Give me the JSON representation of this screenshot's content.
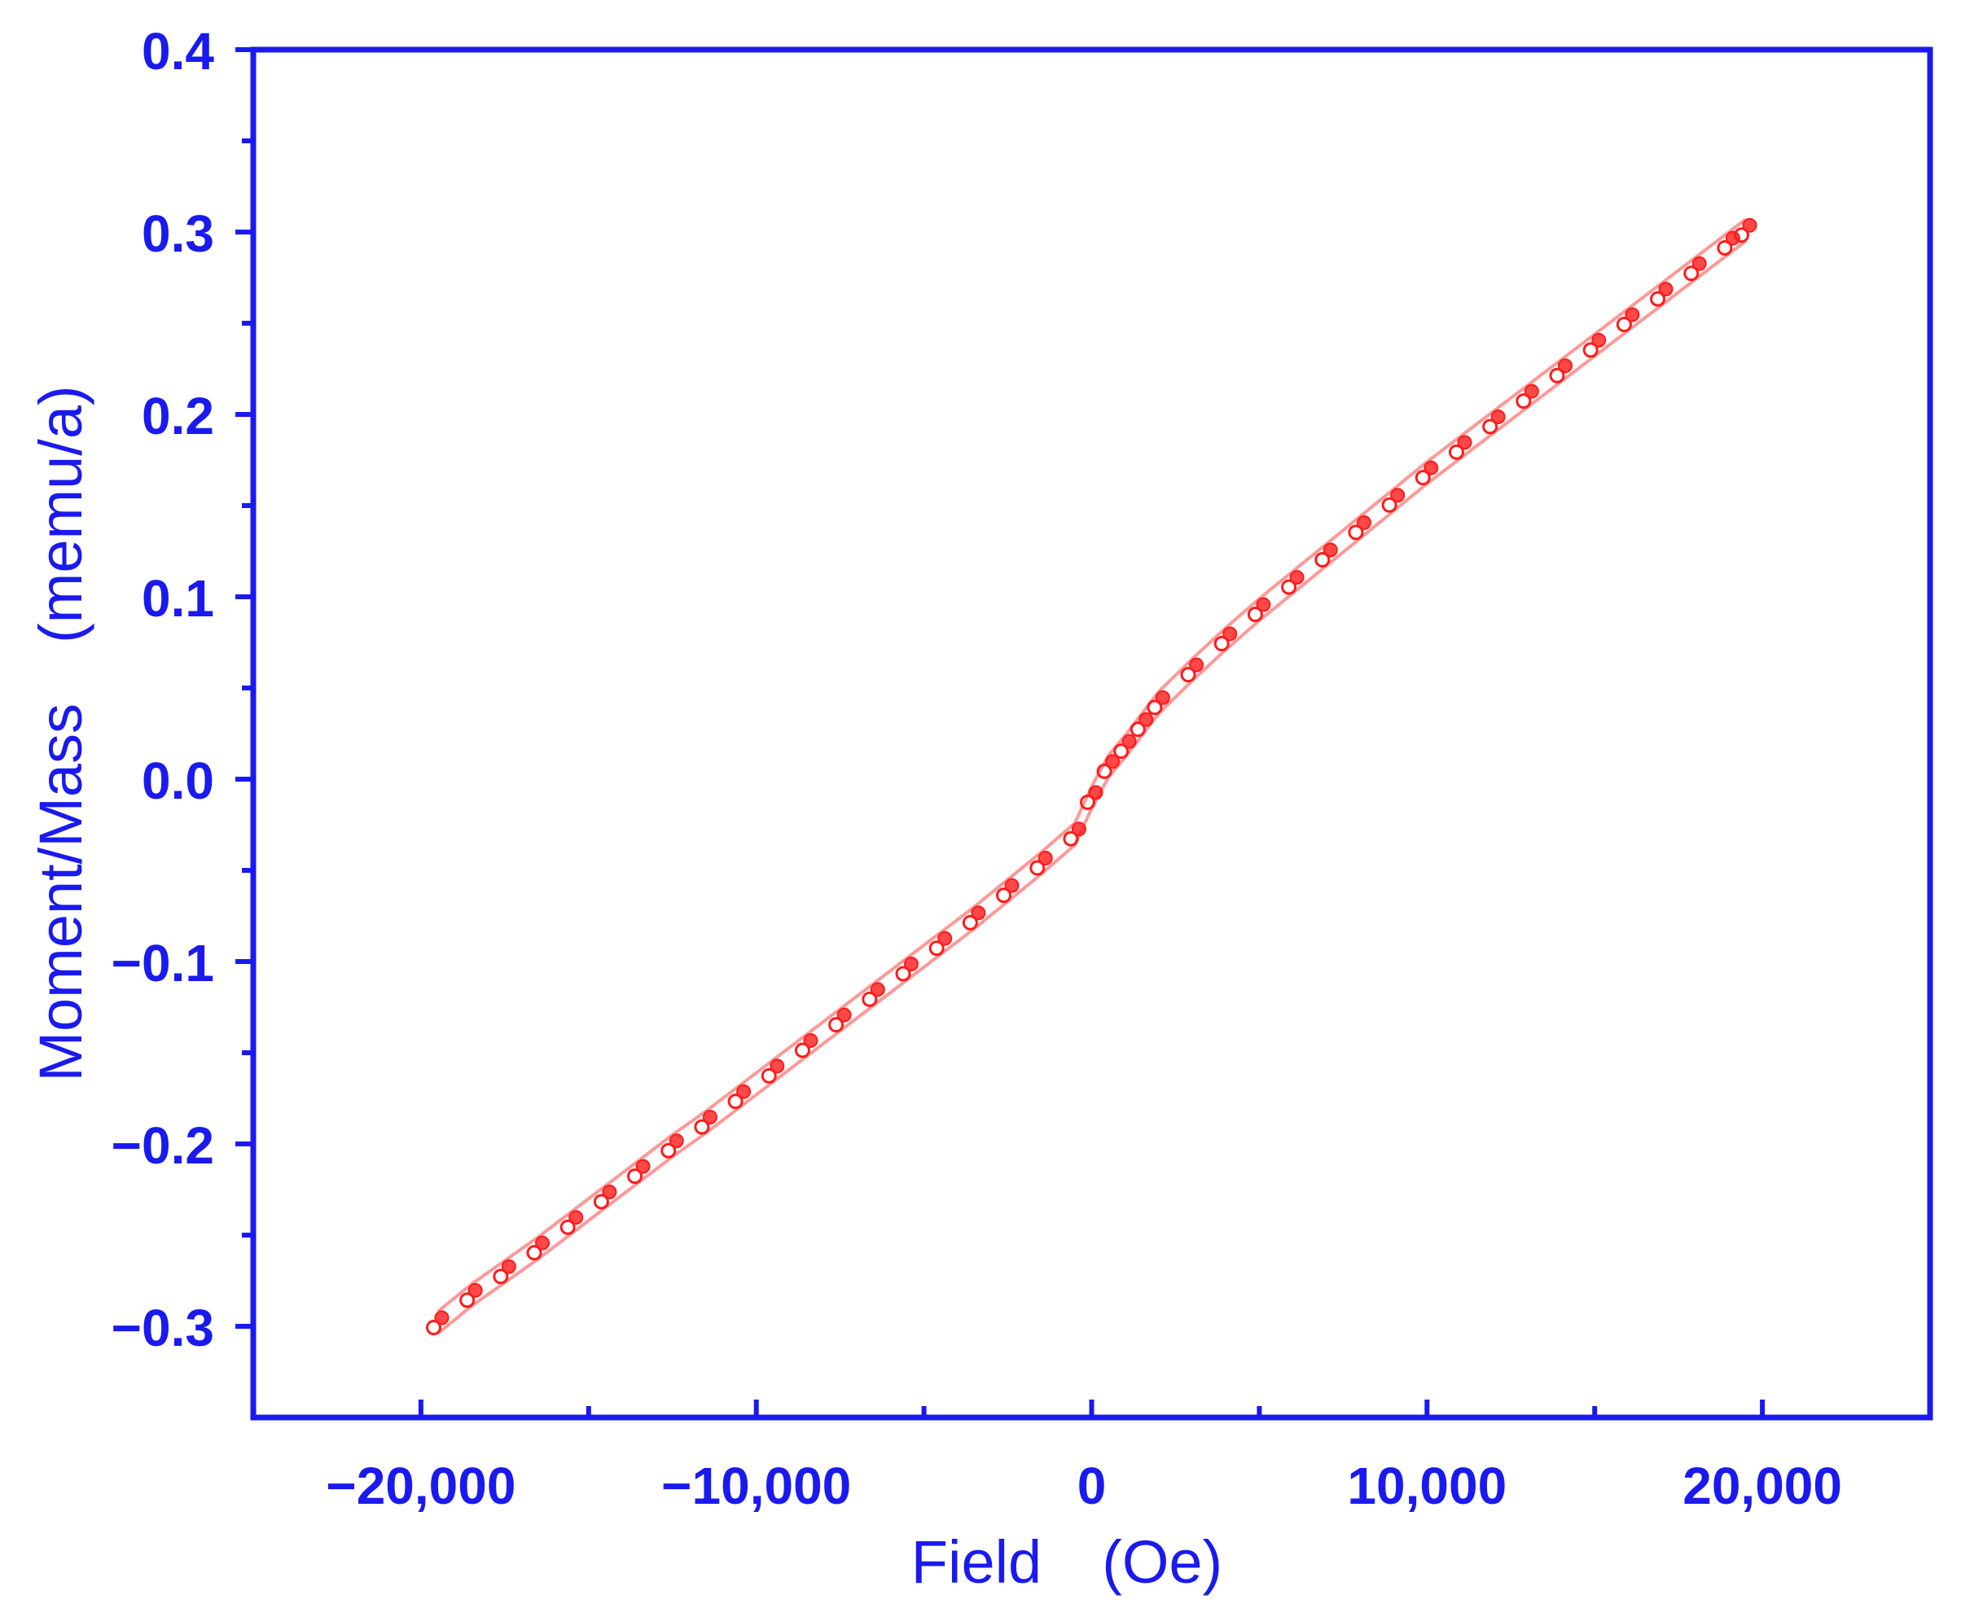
{
  "chart_data": {
    "type": "scatter",
    "title": "",
    "xlabel": "Field (Oe)",
    "ylabel": "Moment/Mass　(memu/a)",
    "xlim": [
      -25000,
      25000
    ],
    "ylim": [
      -0.35,
      0.4
    ],
    "x_ticks": [
      -20000,
      -10000,
      0,
      10000,
      20000
    ],
    "x_tick_labels": [
      "−20,000",
      "−10,000",
      "0",
      "10,000",
      "20,000"
    ],
    "x_minor_ticks": [
      -15000,
      -5000,
      5000,
      15000
    ],
    "y_ticks": [
      -0.3,
      -0.2,
      -0.1,
      0.0,
      0.1,
      0.2,
      0.3,
      0.4
    ],
    "y_tick_labels": [
      "−0.3",
      "−0.2",
      "−0.1",
      "0.0",
      "0.1",
      "0.2",
      "0.3",
      "0.4"
    ],
    "y_minor_ticks": [
      -0.25,
      -0.15,
      -0.05,
      0.05,
      0.15,
      0.25,
      0.35
    ],
    "grid": false,
    "legend": "none",
    "axis_color": "#1a1aee",
    "series": [
      {
        "color": "#ff1a1a",
        "marker": "circle",
        "branch_offset_y": 0.006,
        "x": [
          -19500,
          -18500,
          -17500,
          -16500,
          -15500,
          -14500,
          -13500,
          -12500,
          -11500,
          -10500,
          -9500,
          -8500,
          -7500,
          -6500,
          -5500,
          -4500,
          -3500,
          -2500,
          -1500,
          -500,
          0,
          500,
          1000,
          1500,
          2000,
          3000,
          4000,
          5000,
          6000,
          7000,
          8000,
          9000,
          10000,
          11000,
          12000,
          13000,
          14000,
          15000,
          16000,
          17000,
          18000,
          19000,
          19500
        ],
        "y": [
          -0.298,
          -0.283,
          -0.27,
          -0.257,
          -0.243,
          -0.229,
          -0.215,
          -0.201,
          -0.188,
          -0.174,
          -0.16,
          -0.146,
          -0.132,
          -0.118,
          -0.104,
          -0.09,
          -0.076,
          -0.061,
          -0.046,
          -0.03,
          -0.01,
          0.007,
          0.018,
          0.03,
          0.042,
          0.06,
          0.077,
          0.093,
          0.108,
          0.123,
          0.138,
          0.153,
          0.168,
          0.182,
          0.196,
          0.21,
          0.224,
          0.238,
          0.252,
          0.266,
          0.28,
          0.294,
          0.301
        ]
      }
    ]
  }
}
